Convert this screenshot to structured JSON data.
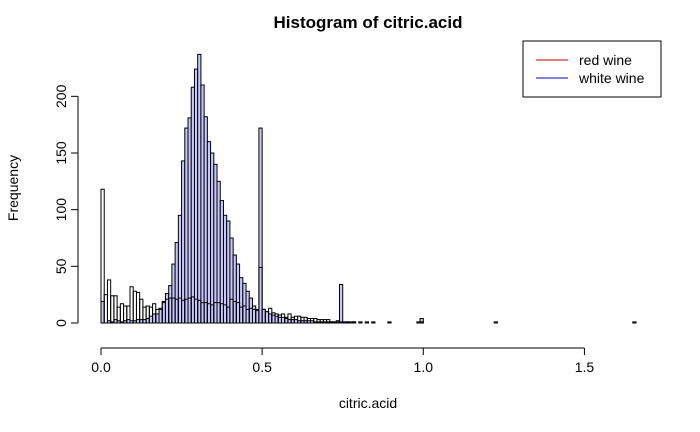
{
  "chart_data": {
    "type": "bar",
    "title": "Histogram of citric.acid",
    "xlabel": "citric.acid",
    "ylabel": "Frequency",
    "xlim": [
      0,
      1.66
    ],
    "ylim": [
      0,
      240
    ],
    "x_ticks": [
      {
        "value": 0.0,
        "label": "0.0"
      },
      {
        "value": 0.5,
        "label": "0.5"
      },
      {
        "value": 1.0,
        "label": "1.0"
      },
      {
        "value": 1.5,
        "label": "1.5"
      }
    ],
    "y_ticks": [
      {
        "value": 0,
        "label": "0"
      },
      {
        "value": 50,
        "label": "50"
      },
      {
        "value": 100,
        "label": "100"
      },
      {
        "value": 150,
        "label": "150"
      },
      {
        "value": 200,
        "label": "200"
      }
    ],
    "bin_width": 0.01,
    "legend": {
      "position": "top-right",
      "entries": [
        {
          "label": "red wine",
          "color": "#cc0000"
        },
        {
          "label": "white wine",
          "color": "#0000cc"
        }
      ]
    },
    "series": [
      {
        "fill": "#c8c8ff",
        "stroke": "#000000",
        "values": [
          19,
          0,
          2,
          1,
          3,
          2,
          1,
          2,
          3,
          2,
          2,
          3,
          3,
          3,
          4,
          6,
          8,
          8,
          12,
          18,
          26,
          33,
          52,
          71,
          95,
          143,
          172,
          181,
          208,
          224,
          237,
          210,
          182,
          160,
          150,
          140,
          125,
          108,
          95,
          90,
          75,
          60,
          52,
          40,
          35,
          28,
          22,
          15,
          12,
          172,
          12,
          10,
          8,
          7,
          6,
          5,
          5,
          4,
          3,
          3,
          3,
          2,
          2,
          2,
          2,
          2,
          1,
          1,
          1,
          1,
          1,
          1,
          1,
          1,
          34,
          1,
          1,
          1,
          1,
          0,
          1,
          0,
          1,
          0,
          1,
          0,
          0,
          0,
          0,
          1,
          0,
          0,
          0,
          0,
          0,
          0,
          0,
          0,
          1,
          4
        ]
      },
      {
        "fill": "none",
        "stroke": "#000000",
        "values": [
          118,
          25,
          38,
          24,
          24,
          14,
          17,
          15,
          15,
          32,
          28,
          27,
          21,
          14,
          15,
          14,
          17,
          12,
          13,
          19,
          21,
          22,
          22,
          21,
          22,
          20,
          21,
          22,
          23,
          21,
          20,
          18,
          18,
          17,
          16,
          18,
          18,
          17,
          16,
          14,
          21,
          19,
          18,
          14,
          15,
          12,
          13,
          12,
          11,
          49,
          12,
          10,
          13,
          9,
          8,
          7,
          8,
          5,
          8,
          5,
          6,
          6,
          5,
          5,
          4,
          4,
          4,
          3,
          3,
          3,
          3,
          1,
          1,
          2,
          1,
          0,
          1,
          0,
          1,
          0,
          0,
          0,
          0,
          0,
          0,
          0,
          0,
          0,
          0,
          0,
          0,
          0,
          0,
          0,
          0,
          0,
          0,
          0,
          0,
          1,
          0,
          0,
          0,
          0,
          0,
          0,
          0,
          0,
          0,
          0,
          0,
          0,
          0,
          0,
          0,
          0,
          0,
          0,
          0,
          0,
          0,
          0,
          1,
          0,
          0,
          0,
          0,
          0,
          0,
          0,
          0,
          0,
          0,
          0,
          0,
          0,
          0,
          0,
          0,
          0,
          0,
          0,
          0,
          0,
          0,
          0,
          0,
          0,
          0,
          0,
          0,
          0,
          0,
          0,
          0,
          0,
          0,
          0,
          0,
          0,
          0,
          0,
          0,
          0,
          0,
          1
        ]
      }
    ]
  }
}
